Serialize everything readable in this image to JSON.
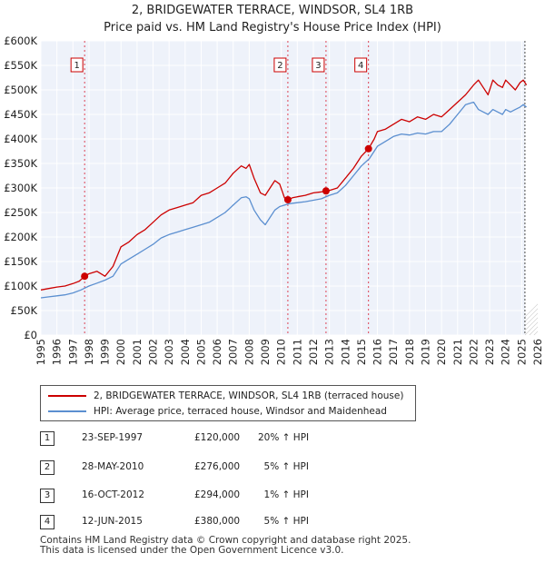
{
  "title_line1": "2, BRIDGEWATER TERRACE, WINDSOR, SL4 1RB",
  "title_line2": "Price paid vs. HM Land Registry's House Price Index (HPI)",
  "chart_data": {
    "type": "line",
    "title": "2, BRIDGEWATER TERRACE, WINDSOR, SL4 1RB — Price paid vs. HM Land Registry's House Price Index (HPI)",
    "xlim": [
      1995,
      2026
    ],
    "ylim": [
      0,
      600000
    ],
    "x_ticks": [
      1995,
      1996,
      1997,
      1998,
      1999,
      2000,
      2001,
      2002,
      2003,
      2004,
      2005,
      2006,
      2007,
      2008,
      2009,
      2010,
      2011,
      2012,
      2013,
      2014,
      2015,
      2016,
      2017,
      2018,
      2019,
      2020,
      2021,
      2022,
      2023,
      2024,
      2025,
      2026
    ],
    "y_ticks": [
      0,
      50000,
      100000,
      150000,
      200000,
      250000,
      300000,
      350000,
      400000,
      450000,
      500000,
      550000,
      600000
    ],
    "y_tick_labels": [
      "£0",
      "£50K",
      "£100K",
      "£150K",
      "£200K",
      "£250K",
      "£300K",
      "£350K",
      "£400K",
      "£450K",
      "£500K",
      "£550K",
      "£600K"
    ],
    "grid": true,
    "series": [
      {
        "name": "2, BRIDGEWATER TERRACE, WINDSOR, SL4 1RB (terraced house)",
        "color": "#cc0000",
        "x": [
          1995.0,
          1995.5,
          1996.0,
          1996.5,
          1997.0,
          1997.4,
          1997.73,
          1998.0,
          1998.5,
          1999.0,
          1999.5,
          2000.0,
          2000.5,
          2001.0,
          2001.5,
          2002.0,
          2002.5,
          2003.0,
          2003.5,
          2004.0,
          2004.5,
          2005.0,
          2005.5,
          2006.0,
          2006.5,
          2007.0,
          2007.5,
          2007.8,
          2008.0,
          2008.3,
          2008.7,
          2009.0,
          2009.3,
          2009.6,
          2009.9,
          2010.2,
          2010.41,
          2010.7,
          2011.0,
          2011.5,
          2012.0,
          2012.5,
          2012.79,
          2013.0,
          2013.5,
          2014.0,
          2014.5,
          2015.0,
          2015.44,
          2015.8,
          2016.0,
          2016.5,
          2017.0,
          2017.5,
          2018.0,
          2018.5,
          2019.0,
          2019.5,
          2020.0,
          2020.5,
          2021.0,
          2021.5,
          2022.0,
          2022.3,
          2022.6,
          2022.9,
          2023.2,
          2023.5,
          2023.8,
          2024.0,
          2024.3,
          2024.6,
          2024.9,
          2025.1,
          2025.3
        ],
        "values": [
          92000,
          95000,
          98000,
          100000,
          105000,
          110000,
          120000,
          125000,
          130000,
          120000,
          140000,
          180000,
          190000,
          205000,
          215000,
          230000,
          245000,
          255000,
          260000,
          265000,
          270000,
          285000,
          290000,
          300000,
          310000,
          330000,
          345000,
          340000,
          348000,
          320000,
          290000,
          285000,
          300000,
          315000,
          308000,
          280000,
          276000,
          280000,
          282000,
          285000,
          290000,
          292000,
          294000,
          295000,
          300000,
          320000,
          340000,
          365000,
          380000,
          400000,
          415000,
          420000,
          430000,
          440000,
          435000,
          445000,
          440000,
          450000,
          445000,
          460000,
          475000,
          490000,
          510000,
          520000,
          505000,
          490000,
          520000,
          510000,
          505000,
          520000,
          510000,
          500000,
          515000,
          520000,
          510000
        ]
      },
      {
        "name": "HPI: Average price, terraced house, Windsor and Maidenhead",
        "color": "#5b8fd0",
        "x": [
          1995.0,
          1995.5,
          1996.0,
          1996.5,
          1997.0,
          1997.5,
          1998.0,
          1998.5,
          1999.0,
          1999.5,
          2000.0,
          2000.5,
          2001.0,
          2001.5,
          2002.0,
          2002.5,
          2003.0,
          2003.5,
          2004.0,
          2004.5,
          2005.0,
          2005.5,
          2006.0,
          2006.5,
          2007.0,
          2007.5,
          2007.8,
          2008.0,
          2008.3,
          2008.7,
          2009.0,
          2009.3,
          2009.6,
          2009.9,
          2010.2,
          2010.5,
          2011.0,
          2011.5,
          2012.0,
          2012.5,
          2013.0,
          2013.5,
          2014.0,
          2014.5,
          2015.0,
          2015.5,
          2016.0,
          2016.5,
          2017.0,
          2017.5,
          2018.0,
          2018.5,
          2019.0,
          2019.5,
          2020.0,
          2020.5,
          2021.0,
          2021.5,
          2022.0,
          2022.3,
          2022.6,
          2022.9,
          2023.2,
          2023.5,
          2023.8,
          2024.0,
          2024.3,
          2024.6,
          2024.9,
          2025.1,
          2025.3
        ],
        "values": [
          76000,
          78000,
          80000,
          82000,
          86000,
          92000,
          100000,
          106000,
          112000,
          120000,
          145000,
          155000,
          165000,
          175000,
          185000,
          198000,
          205000,
          210000,
          215000,
          220000,
          225000,
          230000,
          240000,
          250000,
          265000,
          280000,
          282000,
          278000,
          255000,
          235000,
          225000,
          240000,
          255000,
          262000,
          265000,
          268000,
          270000,
          272000,
          275000,
          278000,
          285000,
          290000,
          305000,
          325000,
          345000,
          360000,
          385000,
          395000,
          405000,
          410000,
          408000,
          412000,
          410000,
          415000,
          415000,
          430000,
          450000,
          470000,
          475000,
          460000,
          455000,
          450000,
          460000,
          455000,
          450000,
          460000,
          455000,
          460000,
          465000,
          470000,
          465000
        ]
      }
    ],
    "vlines": [
      2025.2
    ],
    "sales": [
      {
        "label": "1",
        "x": 1997.73,
        "value": 120000
      },
      {
        "label": "2",
        "x": 2010.41,
        "value": 276000
      },
      {
        "label": "3",
        "x": 2012.79,
        "value": 294000
      },
      {
        "label": "4",
        "x": 2015.44,
        "value": 380000
      }
    ]
  },
  "legend": {
    "red_label": "2, BRIDGEWATER TERRACE, WINDSOR, SL4 1RB (terraced house)",
    "blue_label": "HPI: Average price, terraced house, Windsor and Maidenhead"
  },
  "sales_table": [
    {
      "num": "1",
      "date": "23-SEP-1997",
      "price": "£120,000",
      "hpi": "20% ↑ HPI"
    },
    {
      "num": "2",
      "date": "28-MAY-2010",
      "price": "£276,000",
      "hpi": "5% ↑ HPI"
    },
    {
      "num": "3",
      "date": "16-OCT-2012",
      "price": "£294,000",
      "hpi": "1% ↑ HPI"
    },
    {
      "num": "4",
      "date": "12-JUN-2015",
      "price": "£380,000",
      "hpi": "5% ↑ HPI"
    }
  ],
  "footer": {
    "line1": "Contains HM Land Registry data © Crown copyright and database right 2025.",
    "line2": "This data is licensed under the Open Government Licence v3.0."
  }
}
